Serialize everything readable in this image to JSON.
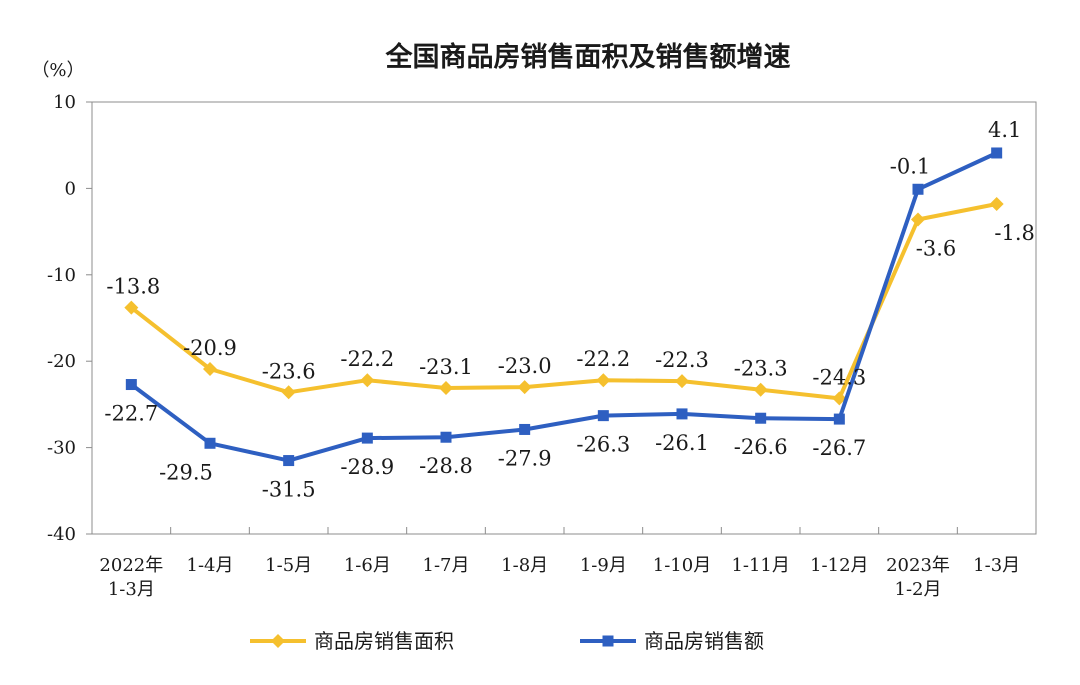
{
  "chart_data": {
    "type": "line",
    "title": "全国商品房销售面积及销售额增速",
    "yunit": "（%）",
    "ylim": [
      -40,
      10
    ],
    "yticks": [
      "10",
      "0",
      "-10",
      "-20",
      "-30",
      "-40"
    ],
    "categories": [
      "2022年 1-3月",
      "1-4月",
      "1-5月",
      "1-6月",
      "1-7月",
      "1-8月",
      "1-9月",
      "1-10月",
      "1-11月",
      "1-12月",
      "2023年 1-2月",
      "1-3月"
    ],
    "category_lines": [
      [
        "2022年",
        "1-3月"
      ],
      [
        "1-4月"
      ],
      [
        "1-5月"
      ],
      [
        "1-6月"
      ],
      [
        "1-7月"
      ],
      [
        "1-8月"
      ],
      [
        "1-9月"
      ],
      [
        "1-10月"
      ],
      [
        "1-11月"
      ],
      [
        "1-12月"
      ],
      [
        "2023年",
        "1-2月"
      ],
      [
        "1-3月"
      ]
    ],
    "series": [
      {
        "name": "商品房销售面积",
        "color": "#f5c02e",
        "marker": "diamond",
        "values": [
          -13.8,
          -20.9,
          -23.6,
          -22.2,
          -23.1,
          -23.0,
          -22.2,
          -22.3,
          -23.3,
          -24.3,
          -3.6,
          -1.8
        ],
        "labels": [
          "-13.8",
          "-20.9",
          "-23.6",
          "-22.2",
          "-23.1",
          "-23.0",
          "-22.2",
          "-22.3",
          "-23.3",
          "-24.3",
          "-3.6",
          "-1.8"
        ]
      },
      {
        "name": "商品房销售额",
        "color": "#2e5fc1",
        "marker": "square",
        "values": [
          -22.7,
          -29.5,
          -31.5,
          -28.9,
          -28.8,
          -27.9,
          -26.3,
          -26.1,
          -26.6,
          -26.7,
          -0.1,
          4.1
        ],
        "labels": [
          "-22.7",
          "-29.5",
          "-31.5",
          "-28.9",
          "-28.8",
          "-27.9",
          "-26.3",
          "-26.1",
          "-26.6",
          "-26.7",
          "-0.1",
          "4.1"
        ]
      }
    ],
    "legend_position": "bottom",
    "grid": false
  }
}
